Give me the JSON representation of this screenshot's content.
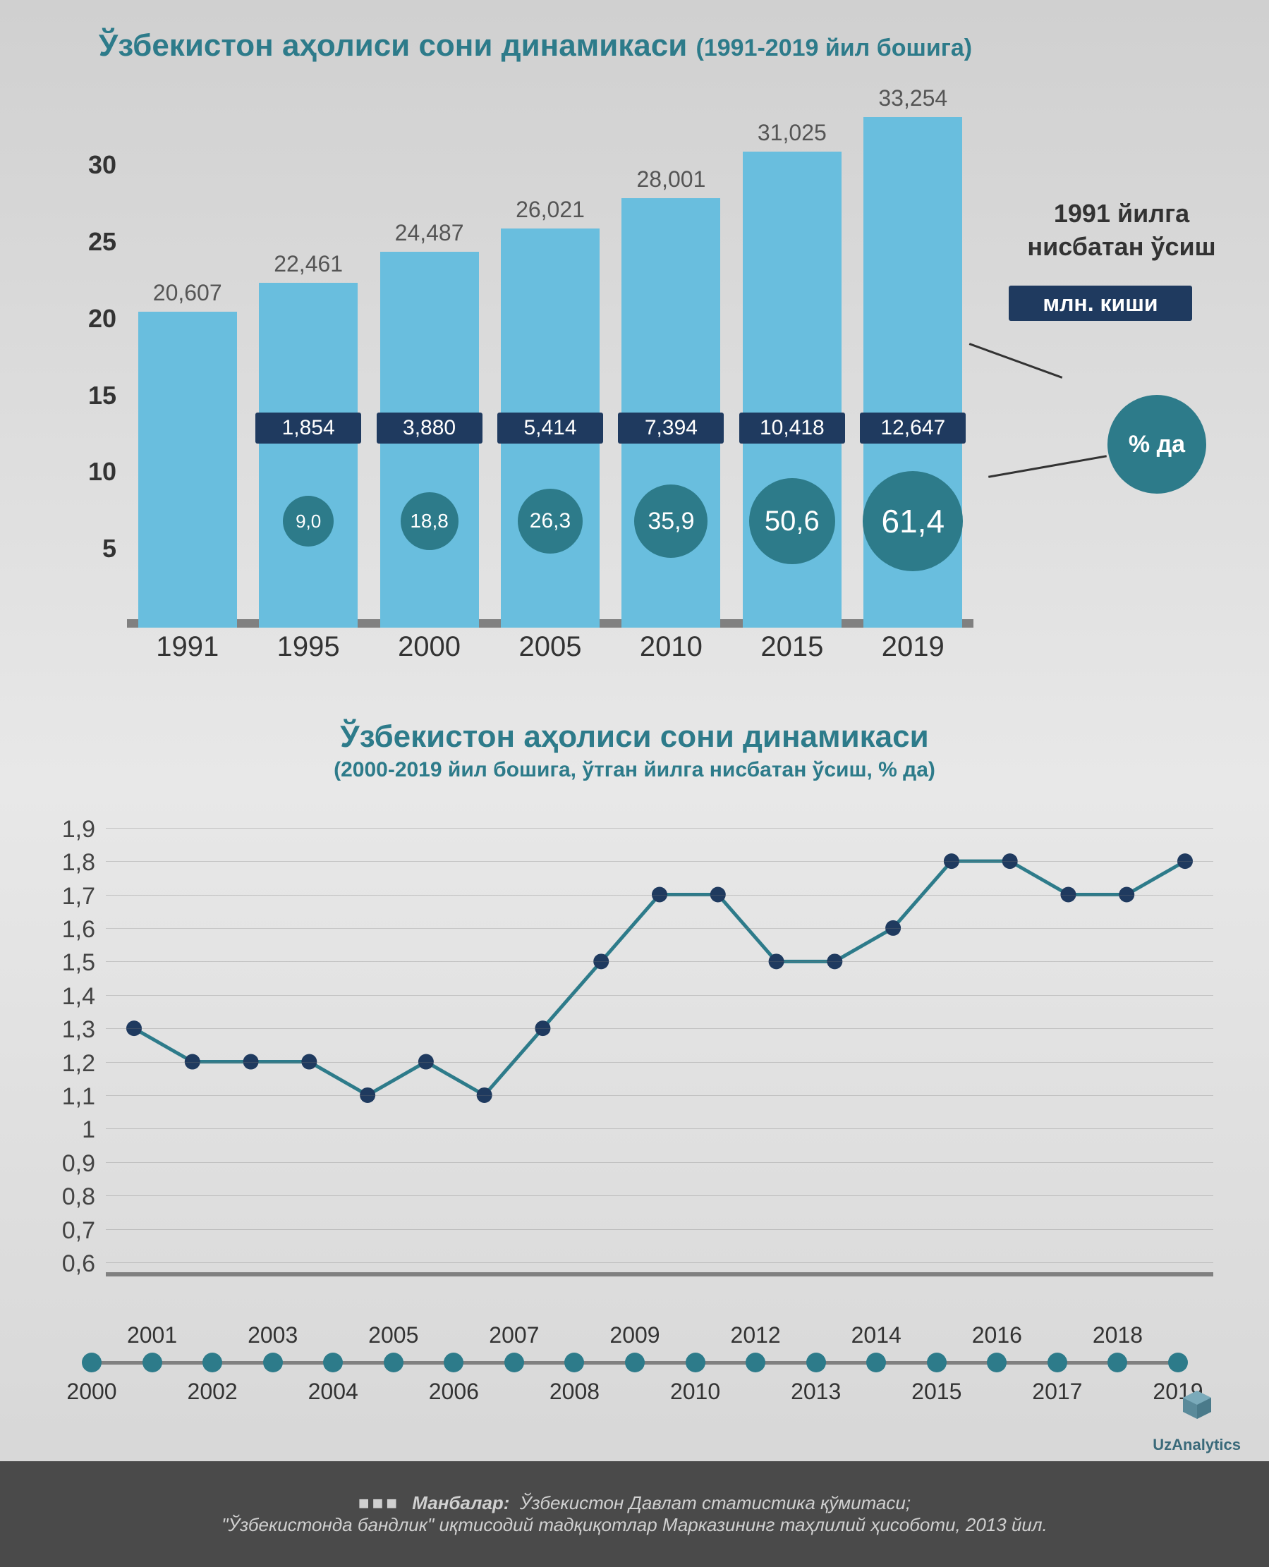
{
  "colors": {
    "bar": "#69bede",
    "title": "#2d7b8a",
    "growth_box": "#1f3a5f",
    "pct_circle": "#2d7b8a",
    "axis": "#808080",
    "footer_bg": "#4a4a4a",
    "line_stroke": "#2d7b8a",
    "point_fill": "#1f3a5f"
  },
  "chart1": {
    "title_main": "Ўзбекистон аҳолиси сони динамикаси",
    "title_sub": "(1991-2019 йил бошига)",
    "y_ticks": [
      5,
      10,
      15,
      20,
      25,
      30
    ],
    "y_max": 34,
    "years": [
      "1991",
      "1995",
      "2000",
      "2005",
      "2010",
      "2015",
      "2019"
    ],
    "values": [
      20.607,
      22.461,
      24.487,
      26.021,
      28.001,
      31.025,
      33.254
    ],
    "value_labels": [
      "20,607",
      "22,461",
      "24,487",
      "26,021",
      "28,001",
      "31,025",
      "33,254"
    ],
    "growth_abs": [
      null,
      "1,854",
      "3,880",
      "5,414",
      "7,394",
      "10,418",
      "12,647"
    ],
    "growth_pct": [
      null,
      "9,0",
      "18,8",
      "26,3",
      "35,9",
      "50,6",
      "61,4"
    ],
    "pct_sizes": [
      0,
      72,
      82,
      92,
      104,
      122,
      142
    ],
    "pct_fonts": [
      0,
      26,
      28,
      30,
      34,
      40,
      46
    ],
    "legend_title": "1991 йилга нисбатан ўсиш",
    "legend_mln": "млн. киши",
    "legend_pct": "% да"
  },
  "chart2": {
    "title": "Ўзбекистон аҳолиси сони динамикаси",
    "subtitle": "(2000-2019 йил бошига, ўтган йилга нисбатан ўсиш, % да)",
    "y_ticks_labels": [
      "0,6",
      "0,7",
      "0,8",
      "0,9",
      "1",
      "1,1",
      "1,2",
      "1,3",
      "1,4",
      "1,5",
      "1,6",
      "1,7",
      "1,8",
      "1,9"
    ],
    "y_ticks_vals": [
      0.6,
      0.7,
      0.8,
      0.9,
      1.0,
      1.1,
      1.2,
      1.3,
      1.4,
      1.5,
      1.6,
      1.7,
      1.8,
      1.9
    ],
    "y_min": 0.6,
    "y_max": 1.95,
    "years": [
      2000,
      2001,
      2002,
      2003,
      2004,
      2005,
      2006,
      2007,
      2008,
      2009,
      2010,
      2012,
      2013,
      2014,
      2015,
      2016,
      2017,
      2018,
      2019
    ],
    "values": [
      1.3,
      1.2,
      1.2,
      1.2,
      1.1,
      1.2,
      1.1,
      1.3,
      1.5,
      1.7,
      1.7,
      1.5,
      1.5,
      1.6,
      1.8,
      1.8,
      1.7,
      1.7,
      1.8
    ],
    "timeline_labels": [
      "2000",
      "2001",
      "2002",
      "2003",
      "2004",
      "2005",
      "2006",
      "2007",
      "2008",
      "2009",
      "2010",
      "2012",
      "2013",
      "2014",
      "2015",
      "2016",
      "2017",
      "2018",
      "2019"
    ]
  },
  "footer": {
    "label": "Манбалар:",
    "line1": "Ўзбекистон Давлат статистика қўмитаси;",
    "line2": "\"Ўзбекистонда бандлик\" иқтисодий тадқиқотлар Марказининг таҳлилий ҳисоботи, 2013 йил."
  },
  "logo_text": "UzAnalytics"
}
